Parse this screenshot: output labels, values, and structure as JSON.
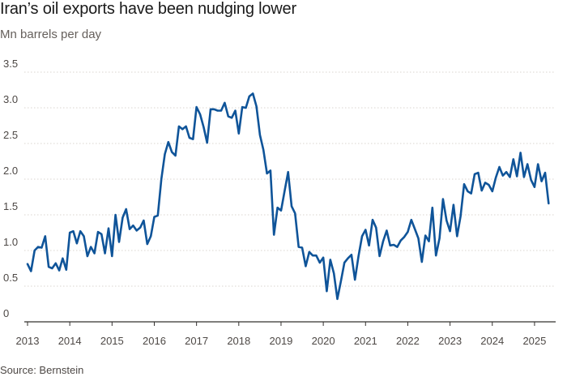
{
  "header": {
    "title": "Iran’s oil exports have been nudging lower",
    "subtitle": "Mn barrels per day"
  },
  "footer": {
    "source": "Source: Bernstein"
  },
  "colors": {
    "series": "#0f5499",
    "grid": "#d9d4cf",
    "text": "#4d4845"
  },
  "chart_data": {
    "type": "line",
    "title": "Iran’s oil exports have been nudging lower",
    "ylabel": "Mn barrels per day",
    "xlabel": "",
    "xlim": [
      2013.0,
      2025.5
    ],
    "ylim": [
      0,
      3.5
    ],
    "y_ticks": [
      0,
      0.5,
      1.0,
      1.5,
      2.0,
      2.5,
      3.0,
      3.5
    ],
    "y_tick_labels": [
      "0",
      "0.5",
      "1.0",
      "1.5",
      "2.0",
      "2.5",
      "3.0",
      "3.5"
    ],
    "x_ticks": [
      2013,
      2014,
      2015,
      2016,
      2017,
      2018,
      2019,
      2020,
      2021,
      2022,
      2023,
      2024,
      2025
    ],
    "x_tick_labels": [
      "2013",
      "2014",
      "2015",
      "2016",
      "2017",
      "2018",
      "2019",
      "2020",
      "2021",
      "2022",
      "2023",
      "2024",
      "2025"
    ],
    "grid": "horizontal",
    "series": [
      {
        "color": "#0f5499",
        "x": [
          2013.0,
          2013.083,
          2013.167,
          2013.25,
          2013.333,
          2013.417,
          2013.5,
          2013.583,
          2013.667,
          2013.75,
          2013.833,
          2013.917,
          2014.0,
          2014.083,
          2014.167,
          2014.25,
          2014.333,
          2014.417,
          2014.5,
          2014.583,
          2014.667,
          2014.75,
          2014.833,
          2014.917,
          2015.0,
          2015.083,
          2015.167,
          2015.25,
          2015.333,
          2015.417,
          2015.5,
          2015.583,
          2015.667,
          2015.75,
          2015.833,
          2015.917,
          2016.0,
          2016.083,
          2016.167,
          2016.25,
          2016.333,
          2016.417,
          2016.5,
          2016.583,
          2016.667,
          2016.75,
          2016.833,
          2016.917,
          2017.0,
          2017.083,
          2017.167,
          2017.25,
          2017.333,
          2017.417,
          2017.5,
          2017.583,
          2017.667,
          2017.75,
          2017.833,
          2017.917,
          2018.0,
          2018.083,
          2018.167,
          2018.25,
          2018.333,
          2018.417,
          2018.5,
          2018.583,
          2018.667,
          2018.75,
          2018.833,
          2018.917,
          2019.0,
          2019.083,
          2019.167,
          2019.25,
          2019.333,
          2019.417,
          2019.5,
          2019.583,
          2019.667,
          2019.75,
          2019.833,
          2019.917,
          2020.0,
          2020.083,
          2020.167,
          2020.25,
          2020.333,
          2020.417,
          2020.5,
          2020.583,
          2020.667,
          2020.75,
          2020.833,
          2020.917,
          2021.0,
          2021.083,
          2021.167,
          2021.25,
          2021.333,
          2021.417,
          2021.5,
          2021.583,
          2021.667,
          2021.75,
          2021.833,
          2021.917,
          2022.0,
          2022.083,
          2022.167,
          2022.25,
          2022.333,
          2022.417,
          2022.5,
          2022.583,
          2022.667,
          2022.75,
          2022.833,
          2022.917,
          2023.0,
          2023.083,
          2023.167,
          2023.25,
          2023.333,
          2023.417,
          2023.5,
          2023.583,
          2023.667,
          2023.75,
          2023.833,
          2023.917,
          2024.0,
          2024.083,
          2024.167,
          2024.25,
          2024.333,
          2024.417,
          2024.5,
          2024.583,
          2024.667,
          2024.75,
          2024.833,
          2024.917,
          2025.0,
          2025.083,
          2025.167,
          2025.25,
          2025.333
        ],
        "values": [
          0.81,
          0.71,
          1.0,
          1.05,
          1.04,
          1.2,
          0.77,
          0.75,
          0.82,
          0.72,
          0.89,
          0.73,
          1.25,
          1.27,
          1.1,
          1.27,
          1.2,
          0.92,
          1.05,
          0.96,
          1.26,
          1.23,
          0.96,
          1.31,
          0.92,
          1.5,
          1.12,
          1.46,
          1.58,
          1.3,
          1.35,
          1.28,
          1.32,
          1.42,
          1.09,
          1.2,
          1.47,
          1.49,
          2.0,
          2.35,
          2.52,
          2.38,
          2.33,
          2.74,
          2.7,
          2.74,
          2.58,
          2.56,
          3.01,
          2.91,
          2.73,
          2.51,
          2.98,
          2.98,
          2.96,
          2.96,
          3.07,
          2.88,
          2.86,
          2.96,
          2.64,
          3.01,
          3.0,
          3.16,
          3.2,
          3.02,
          2.62,
          2.41,
          2.08,
          2.12,
          1.22,
          1.6,
          1.56,
          1.83,
          2.1,
          1.62,
          1.52,
          1.05,
          1.04,
          0.78,
          0.98,
          0.93,
          0.93,
          0.83,
          0.9,
          0.43,
          0.87,
          0.68,
          0.32,
          0.57,
          0.83,
          0.89,
          0.94,
          0.59,
          0.92,
          1.2,
          1.29,
          1.07,
          1.43,
          1.32,
          0.92,
          1.13,
          1.28,
          1.07,
          1.08,
          1.05,
          1.14,
          1.19,
          1.26,
          1.43,
          1.3,
          1.17,
          0.84,
          1.21,
          1.13,
          1.6,
          0.93,
          1.17,
          1.72,
          1.42,
          1.27,
          1.64,
          1.2,
          1.48,
          1.93,
          1.83,
          1.8,
          2.07,
          2.09,
          1.84,
          1.95,
          1.92,
          1.83,
          2.02,
          2.17,
          2.05,
          2.1,
          2.03,
          2.28,
          2.04,
          2.37,
          2.03,
          2.21,
          1.99,
          1.89,
          2.21,
          1.97,
          2.09,
          1.66
        ]
      }
    ]
  }
}
